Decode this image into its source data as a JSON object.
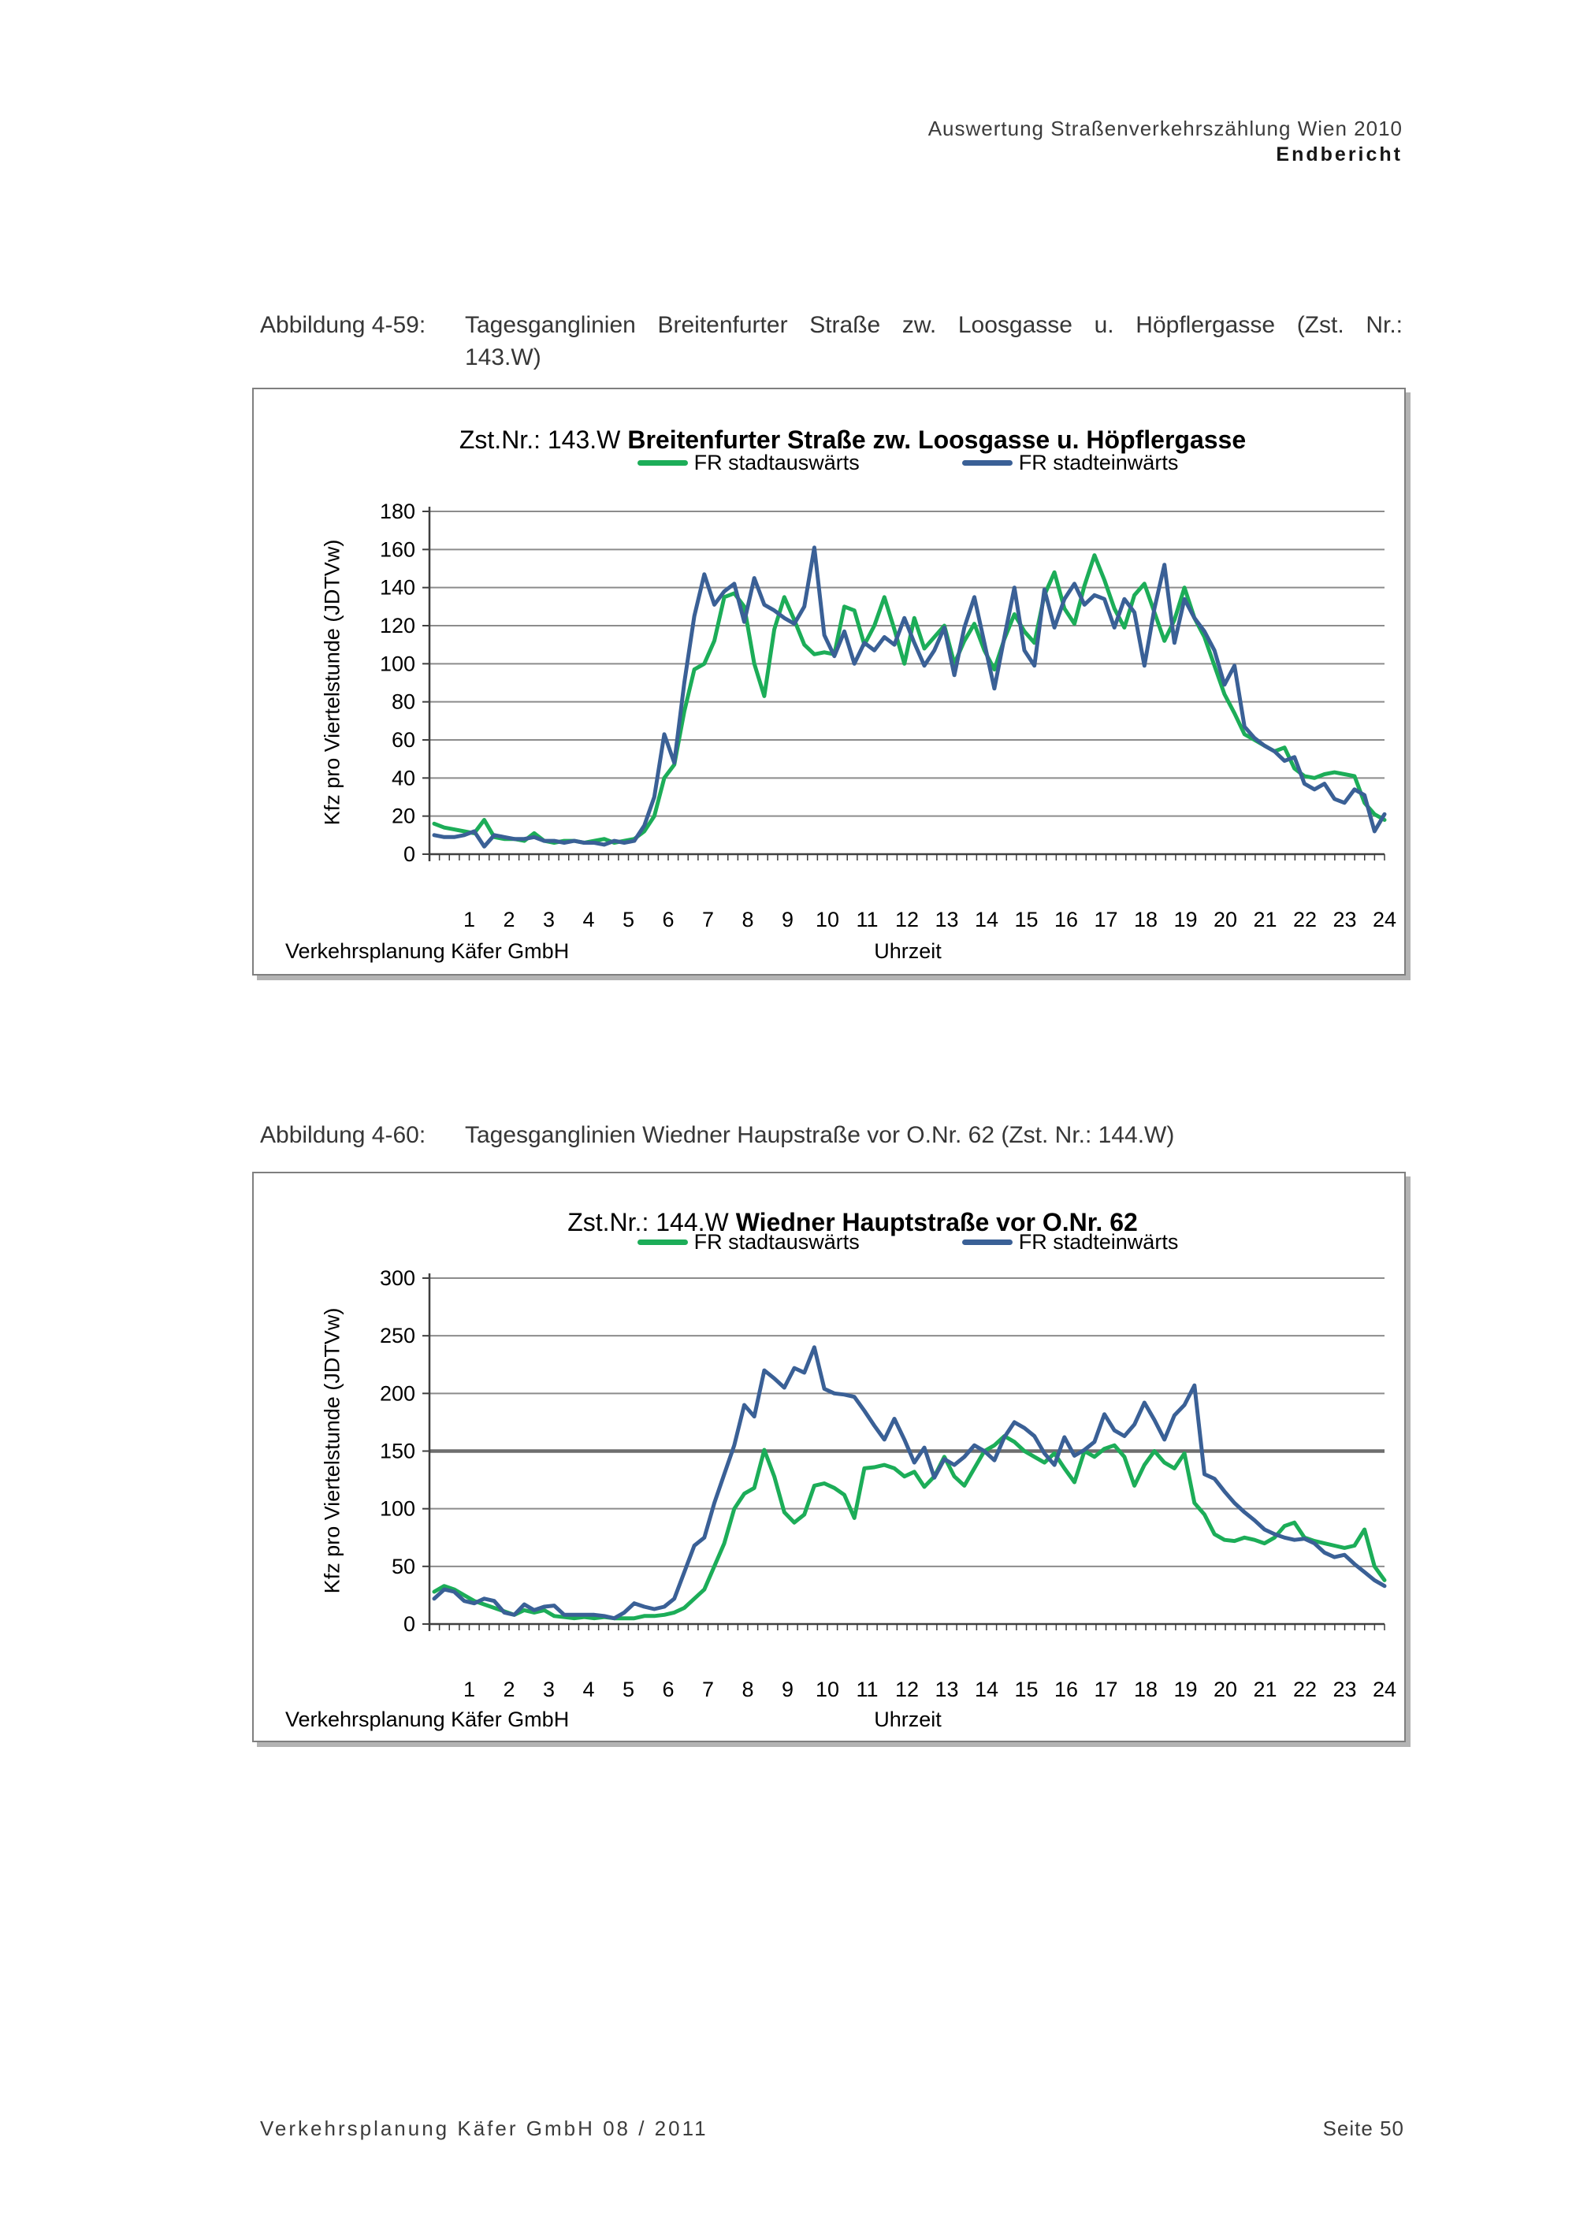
{
  "page": {
    "header": {
      "line1": "Auswertung Straßenverkehrszählung Wien 2010",
      "line2": "Endbericht"
    },
    "footer": {
      "left": "Verkehrsplanung Käfer GmbH  08 / 2011",
      "right": "Seite 50"
    }
  },
  "captions": [
    {
      "label": "Abbildung 4-59:",
      "line1": "Tagesganglinien Breitenfurter Straße zw. Loosgasse u. Höpflergasse (Zst. Nr.:",
      "line2": "143.W)"
    },
    {
      "label": "Abbildung 4-60:",
      "text": "Tagesganglinien Wiedner Haupstraße vor O.Nr. 62 (Zst. Nr.: 144.W)"
    }
  ],
  "colors": {
    "series_green": "#1CAD58",
    "series_blue": "#3A6096",
    "gridline": "#8C8C8C",
    "gridline_emphasis": "#6E6E6E",
    "axis": "#3F3F3F"
  },
  "chart_data": [
    {
      "type": "line",
      "title_prefix": "Zst.Nr.: 143.W",
      "title_bold": "Breitenfurter Straße zw. Loosgasse u. Höpflergasse",
      "ylabel": "Kfz pro Viertelstunde (JDTVw)",
      "xlabel": "Uhrzeit",
      "source_note": "Verkehrsplanung Käfer GmbH",
      "legend_position": "top",
      "grid": true,
      "x_unit": "hour of day, 4 samples per hour (quarter-hours 0:15–24:00)",
      "x_tick_labels": [
        1,
        2,
        3,
        4,
        5,
        6,
        7,
        8,
        9,
        10,
        11,
        12,
        13,
        14,
        15,
        16,
        17,
        18,
        19,
        20,
        21,
        22,
        23,
        24
      ],
      "ylim": [
        0,
        180
      ],
      "ytick_step": 20,
      "y_ticks": [
        0,
        20,
        40,
        60,
        80,
        100,
        120,
        140,
        160,
        180
      ],
      "emphasis_gridline": null,
      "legend": [
        {
          "name": "FR stadtauswärts",
          "color_key": "series_green"
        },
        {
          "name": "FR stadteinwärts",
          "color_key": "series_blue"
        }
      ],
      "series": [
        {
          "name": "FR stadtauswärts",
          "color_key": "series_green",
          "values": [
            16,
            14,
            13,
            12,
            11,
            18,
            9,
            8,
            8,
            7,
            11,
            7,
            6,
            7,
            7,
            6,
            7,
            8,
            6,
            7,
            8,
            12,
            20,
            40,
            47,
            75,
            97,
            100,
            112,
            135,
            137,
            130,
            100,
            83,
            118,
            135,
            123,
            110,
            105,
            106,
            105,
            130,
            128,
            110,
            120,
            135,
            118,
            100,
            124,
            108,
            114,
            120,
            100,
            112,
            121,
            107,
            97,
            113,
            126,
            117,
            111,
            136,
            148,
            129,
            121,
            141,
            157,
            144,
            129,
            119,
            136,
            142,
            127,
            112,
            123,
            140,
            124,
            114,
            99,
            84,
            74,
            63,
            60,
            57,
            54,
            56,
            45,
            41,
            40,
            42,
            43,
            42,
            41,
            27,
            21,
            18
          ]
        },
        {
          "name": "FR stadteinwärts",
          "color_key": "series_blue",
          "values": [
            10,
            9,
            9,
            10,
            12,
            4,
            10,
            9,
            8,
            8,
            9,
            7,
            7,
            6,
            7,
            6,
            6,
            5,
            7,
            6,
            7,
            15,
            30,
            63,
            48,
            90,
            125,
            147,
            131,
            138,
            142,
            122,
            145,
            131,
            128,
            124,
            121,
            130,
            161,
            115,
            104,
            117,
            100,
            111,
            107,
            114,
            110,
            124,
            111,
            99,
            107,
            119,
            94,
            119,
            135,
            111,
            87,
            114,
            140,
            107,
            99,
            139,
            119,
            134,
            142,
            131,
            136,
            134,
            119,
            134,
            127,
            99,
            129,
            152,
            111,
            134,
            124,
            117,
            107,
            89,
            99,
            67,
            61,
            57,
            54,
            49,
            51,
            37,
            34,
            37,
            29,
            27,
            34,
            31,
            12,
            21
          ]
        }
      ]
    },
    {
      "type": "line",
      "title_prefix": "Zst.Nr.: 144.W",
      "title_bold": "Wiedner Hauptstraße vor O.Nr. 62",
      "ylabel": "Kfz pro Viertelstunde (JDTVw)",
      "xlabel": "Uhrzeit",
      "source_note": "Verkehrsplanung Käfer GmbH",
      "legend_position": "top",
      "grid": true,
      "x_unit": "hour of day, 4 samples per hour (quarter-hours 0:15–24:00)",
      "x_tick_labels": [
        1,
        2,
        3,
        4,
        5,
        6,
        7,
        8,
        9,
        10,
        11,
        12,
        13,
        14,
        15,
        16,
        17,
        18,
        19,
        20,
        21,
        22,
        23,
        24
      ],
      "ylim": [
        0,
        300
      ],
      "ytick_step": 50,
      "y_ticks": [
        0,
        50,
        100,
        150,
        200,
        250,
        300
      ],
      "emphasis_gridline": 150,
      "legend": [
        {
          "name": "FR stadtauswärts",
          "color_key": "series_green"
        },
        {
          "name": "FR stadteinwärts",
          "color_key": "series_blue"
        }
      ],
      "series": [
        {
          "name": "FR stadtauswärts",
          "color_key": "series_green",
          "values": [
            28,
            33,
            30,
            25,
            20,
            17,
            14,
            11,
            8,
            12,
            10,
            12,
            7,
            6,
            5,
            6,
            5,
            6,
            5,
            5,
            5,
            7,
            7,
            8,
            10,
            14,
            22,
            30,
            50,
            70,
            100,
            113,
            118,
            151,
            128,
            97,
            88,
            95,
            120,
            122,
            118,
            112,
            92,
            135,
            136,
            138,
            135,
            128,
            132,
            119,
            128,
            145,
            128,
            120,
            135,
            150,
            155,
            163,
            158,
            150,
            145,
            140,
            148,
            135,
            123,
            150,
            145,
            152,
            155,
            145,
            120,
            138,
            150,
            140,
            135,
            148,
            105,
            95,
            78,
            73,
            72,
            75,
            73,
            70,
            75,
            85,
            88,
            75,
            72,
            70,
            68,
            66,
            68,
            82,
            50,
            38
          ]
        },
        {
          "name": "FR stadteinwärts",
          "color_key": "series_blue",
          "values": [
            22,
            30,
            28,
            20,
            18,
            22,
            20,
            10,
            8,
            17,
            12,
            15,
            16,
            8,
            8,
            8,
            8,
            7,
            5,
            10,
            18,
            15,
            13,
            15,
            22,
            45,
            68,
            75,
            105,
            130,
            155,
            190,
            180,
            220,
            213,
            205,
            222,
            218,
            240,
            204,
            200,
            199,
            197,
            185,
            172,
            160,
            178,
            160,
            140,
            153,
            127,
            143,
            138,
            145,
            155,
            150,
            142,
            162,
            175,
            170,
            163,
            148,
            138,
            162,
            146,
            151,
            158,
            182,
            168,
            163,
            173,
            192,
            177,
            160,
            181,
            190,
            207,
            130,
            126,
            115,
            105,
            97,
            90,
            82,
            78,
            75,
            73,
            74,
            70,
            62,
            58,
            60,
            52,
            45,
            38,
            33
          ]
        }
      ]
    }
  ]
}
